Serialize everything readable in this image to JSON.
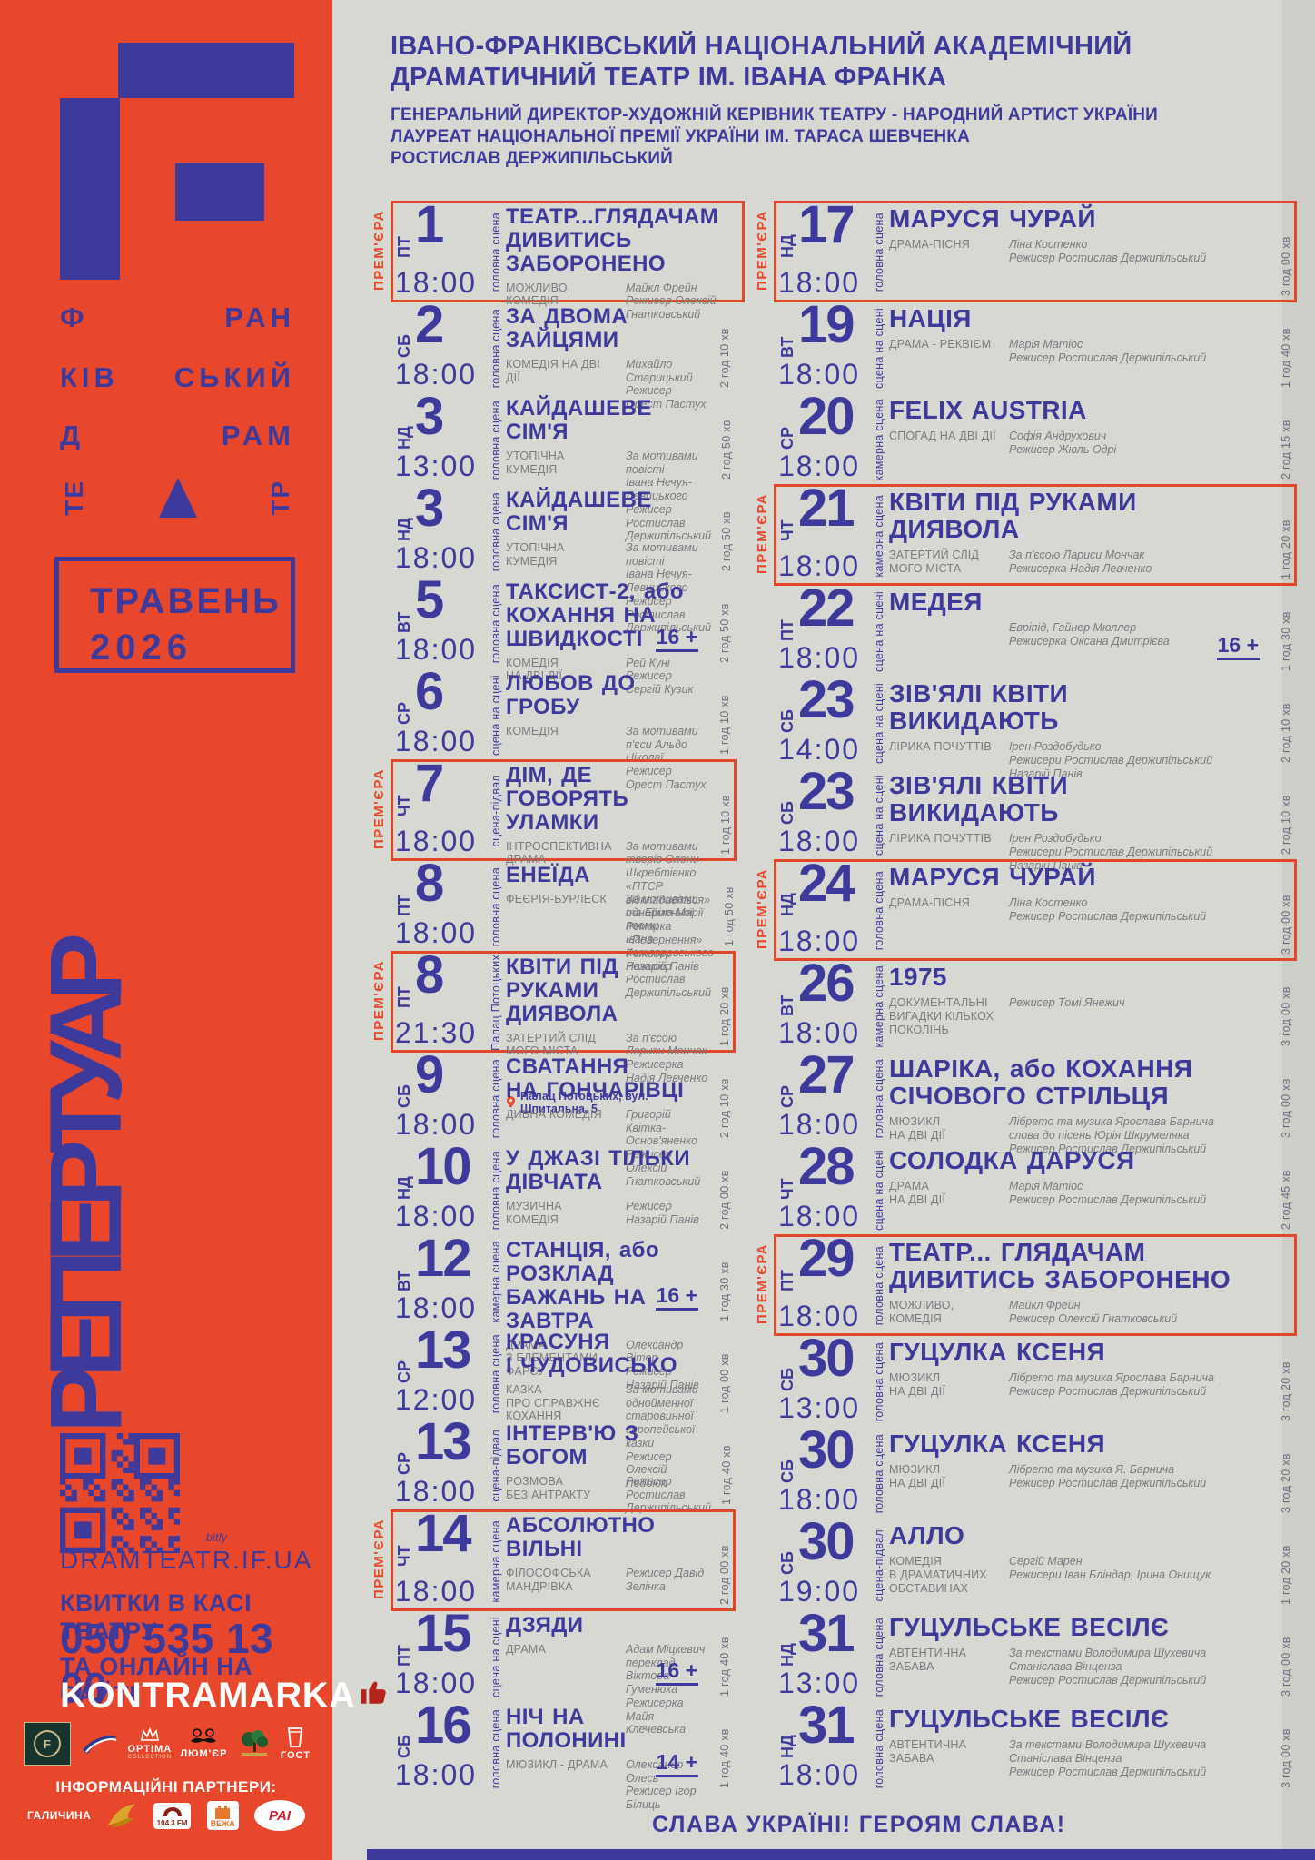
{
  "header": {
    "title1": "ІВАНО-ФРАНКІВСЬКИЙ НАЦІОНАЛЬНИЙ АКАДЕМІЧНИЙ",
    "title2": "ДРАМАТИЧНИЙ ТЕАТР ІМ. ІВАНА ФРАНКА",
    "sub1": "ГЕНЕРАЛЬНИЙ ДИРЕКТОР-ХУДОЖНІЙ КЕРІВНИК ТЕАТРУ - НАРОДНИЙ АРТИСТ УКРАЇНИ",
    "sub2": "ЛАУРЕАТ НАЦІОНАЛЬНОЇ ПРЕМІЇ УКРАЇНИ ІМ. ТАРАСА ШЕВЧЕНКА",
    "sub3": "РОСТИСЛАВ ДЕРЖИПІЛЬСЬКИЙ"
  },
  "sidebar": {
    "letters": {
      "r1a": "Ф",
      "r1b": "РАН",
      "r2a": "КІВ",
      "r2b": "СЬКИЙ",
      "r3a": "Д",
      "r3b": "РАМ",
      "r4a": "ТЕ",
      "r4b": "ТР"
    },
    "month": "ТРАВЕНЬ",
    "year": "2026",
    "vertical_title": "РЕПЕРТУАР",
    "qr_caption": "bitly",
    "site": "DRAMTEATR.IF.UA",
    "tickets1": "КВИТКИ В КАСІ ТЕАТРУ",
    "phone": "050 535 13 00",
    "tickets2": "ТА ОНЛАЙН НА САЙТІ",
    "kontramarka": "KONTRAMARKA",
    "partners_label": "ІНФОРМАЦІЙНІ ПАРТНЕРИ:",
    "partner_texts": {
      "hotel_f": "F",
      "optima": "OPTIMA",
      "optima_sub": "COLLECTION",
      "lumier": "ЛЮМ'ЄР",
      "gost": "ГОСТ"
    },
    "media_texts": {
      "halychyna": "ГАЛИЧИНА",
      "fm": "104.3 FM",
      "vezha": "ВЕЖА",
      "rai": "РАІ"
    }
  },
  "labels": {
    "premiere": "ПРЕМ'ЄРА"
  },
  "footer": {
    "slogan": "СЛАВА УКРАЇНІ!  ГЕРОЯМ СЛАВА!"
  },
  "colors": {
    "orange": "#E8472C",
    "blue": "#3E3A9C",
    "background": "#D8D8D2",
    "gray_text": "#7A7A80"
  },
  "columns": {
    "left": [
      {
        "premiere": true,
        "day": "ПТ",
        "date": "1",
        "time": "18:00",
        "stage": "головна сцена",
        "title": "ТЕАТР...ГЛЯДАЧАМ\nДИВИТИСЬ ЗАБОРОНЕНО",
        "genre": "МОЖЛИВО,\nКОМЕДІЯ",
        "credits": "Майкл Фрейн\nРежисер Олексій Гнатковський"
      },
      {
        "day": "СБ",
        "date": "2",
        "time": "18:00",
        "stage": "головна сцена",
        "title": "ЗА ДВОМА ЗАЙЦЯМИ",
        "genre": "КОМЕДІЯ НА ДВІ ДІЇ",
        "credits": "Михайло Старицький\nРежисер Орест Пастух",
        "duration": "2 год 10 хв"
      },
      {
        "day": "НД",
        "date": "3",
        "time": "13:00",
        "stage": "головна сцена",
        "title": "КАЙДАШЕВЕ СІМ'Я",
        "genre": "УТОПІЧНА КУМЕДІЯ",
        "credits": "За мотивами повісті\nІвана Нечуя-Левицького\nРежисер Ростислав Держипільський",
        "duration": "2 год 50 хв"
      },
      {
        "day": "НД",
        "date": "3",
        "time": "18:00",
        "stage": "головна сцена",
        "title": "КАЙДАШЕВЕ СІМ'Я",
        "genre": "УТОПІЧНА КУМЕДІЯ",
        "credits": "За мотивами повісті\nІвана Нечуя-Левицького\nРежисер Ростислав Держипільський",
        "duration": "2 год 50 хв"
      },
      {
        "day": "ВТ",
        "date": "5",
        "time": "18:00",
        "stage": "головна сцена",
        "title": "ТАКСИСТ-2, або\nКОХАННЯ НА ШВИДКОСТІ",
        "genre": "КОМЕДІЯ\nНА ДВІ ДІЇ",
        "credits": "Рей Куні\nРежисер Сергій Кузик",
        "age": "16 +",
        "duration": "2 год 50 хв"
      },
      {
        "day": "СР",
        "date": "6",
        "time": "18:00",
        "stage": "сцена на сцені",
        "title": "ЛЮБОВ ДО ГРОБУ",
        "genre": "КОМЕДІЯ",
        "credits": "За мотивами п'єси Альдо Ніколаї\nРежисер Орест Пастух",
        "duration": "1 год 10 хв"
      },
      {
        "premiere": true,
        "day": "ЧТ",
        "date": "7",
        "time": "18:00",
        "stage": "сцена-підвал",
        "title": "ДІМ, ДЕ ГОВОРЯТЬ\nУЛАМКИ",
        "genre": "ІНТРОСПЕКТИВНА\nДРАМА",
        "credits": "За мотивами творів Олени Шкребтієнко\n«ПТСР відкладається»\nта Еріха Марії Ремарка «Повернення»\nРежисер Назарій Панів",
        "duration": "1 год 10 хв"
      },
      {
        "day": "ПТ",
        "date": "8",
        "time": "18:00",
        "stage": "головна сцена",
        "title": "ЕНЕЇДА",
        "genre": "ФЕЄРІЯ-БУРЛЕСК",
        "credits": "За мотивами однойменної поеми\nІвана Котляревського\nРежисер Ростислав Держипільський",
        "duration": "1 год 50 хв"
      },
      {
        "premiere": true,
        "day": "ПТ",
        "date": "8",
        "time": "21:30",
        "stage": "Палац Потоцьких",
        "title": "КВІТИ ПІД РУКАМИ\nДИЯВОЛА",
        "genre": "ЗАТЕРТИЙ СЛІД\nМОГО МІСТА",
        "credits": "За п'єсою Лариси Мончак\nРежисерка Надія Левченко",
        "duration": "1 год 20 хв",
        "location": "Палац Потоцьких, вул. Шпитальна, 5"
      },
      {
        "day": "СБ",
        "date": "9",
        "time": "18:00",
        "stage": "головна сцена",
        "title": "СВАТАННЯ\nНА ГОНЧАРІВЦІ",
        "genre": "ДИВНА КОМЕДІЯ",
        "credits": "Григорій Квітка-Основ'яненко\nРежисер Олексій Гнатковський",
        "duration": "2 год 10 хв"
      },
      {
        "day": "НД",
        "date": "10",
        "time": "18:00",
        "stage": "головна сцена",
        "title": "У ДЖАЗІ ТІЛЬКИ\nДІВЧАТА",
        "genre": "МУЗИЧНА КОМЕДІЯ",
        "credits": "Режисер Назарій Панів",
        "duration": "2 год 00 хв"
      },
      {
        "day": "ВТ",
        "date": "12",
        "time": "18:00",
        "stage": "камерна сцена",
        "title": "СТАНЦІЯ, або РОЗКЛАД\nБАЖАНЬ НА ЗАВТРА",
        "genre": "ДРАМА\nЗ ЕЛЕМЕНТАМИ ФАРСУ",
        "credits": "Олександр Вітер\nРежисер Назарій Панів",
        "age": "16 +",
        "duration": "1 год 30 хв"
      },
      {
        "day": "СР",
        "date": "13",
        "time": "12:00",
        "stage": "головна сцена",
        "title": "КРАСУНЯ\nІ ЧУДОВИСЬКО",
        "genre": "КАЗКА\nПРО СПРАВЖНЄ\nКОХАННЯ",
        "credits": "За мотивами однойменної\nстаровинної європейської казки\nРежисер Олексій Лейбюк",
        "duration": "1 год 00 хв"
      },
      {
        "day": "СР",
        "date": "13",
        "time": "18:00",
        "stage": "сцена-підвал",
        "title": "ІНТЕРВ'Ю З БОГОМ",
        "genre": "РОЗМОВА\nБЕЗ АНТРАКТУ",
        "credits": "Режисер Ростислав Держипільський",
        "duration": "1 год 40 хв"
      },
      {
        "premiere": true,
        "day": "ЧТ",
        "date": "14",
        "time": "18:00",
        "stage": "камерна сцена",
        "title": "АБСОЛЮТНО ВІЛЬНІ",
        "genre": "ФІЛОСОФСЬКА\nМАНДРІВКА",
        "credits": "Режисер Давід Зелінка",
        "duration": "2 год 00 хв"
      },
      {
        "day": "ПТ",
        "date": "15",
        "time": "18:00",
        "stage": "сцена на сцені",
        "title": "ДЗЯДИ",
        "genre": "ДРАМА",
        "credits": "Адам Міцкевич\nпереклад Віктора Гуменюка\nРежисерка Майя Клечевська",
        "age": "16 +",
        "duration": "1 год 40 хв"
      },
      {
        "day": "СБ",
        "date": "16",
        "time": "18:00",
        "stage": "головна сцена",
        "title": "НІЧ НА ПОЛОНИНІ",
        "genre": "МЮЗИКЛ - ДРАМА",
        "credits": "Олександр Олесь\nРежисер Ігор Білиць",
        "age": "14 +",
        "duration": "1 год 40 хв"
      }
    ],
    "right": [
      {
        "premiere": true,
        "day": "НД",
        "date": "17",
        "time": "18:00",
        "stage": "головна сцена",
        "title": "МАРУСЯ ЧУРАЙ",
        "genre": "ДРАМА-ПІСНЯ",
        "credits": "Ліна Костенко\nРежисер Ростислав Держипільський",
        "duration": "3 год 00 хв"
      },
      {
        "day": "ВТ",
        "date": "19",
        "time": "18:00",
        "stage": "сцена на сцені",
        "title": "НАЦІЯ",
        "genre": "ДРАМА - РЕКВІЄМ",
        "credits": "Марія Матіос\nРежисер Ростислав Держипільський",
        "duration": "1 год 40 хв"
      },
      {
        "day": "СР",
        "date": "20",
        "time": "18:00",
        "stage": "камерна сцена",
        "title": "FELIX AUSTRIA",
        "genre": "СПОГАД НА ДВІ ДІЇ",
        "credits": "Софія Андрухович\nРежисер Жюль Одрі",
        "duration": "2 год 15 хв"
      },
      {
        "premiere": true,
        "day": "ЧТ",
        "date": "21",
        "time": "18:00",
        "stage": "камерна сцена",
        "title": "КВІТИ ПІД РУКАМИ\nДИЯВОЛА",
        "genre": "ЗАТЕРТИЙ СЛІД\nМОГО МІСТА",
        "credits": "За п'єсою Лариси Мончак\nРежисерка Надія Левченко",
        "duration": "1 год 20 хв"
      },
      {
        "day": "ПТ",
        "date": "22",
        "time": "18:00",
        "stage": "сцена на сцені",
        "title": "МЕДЕЯ",
        "genre": "",
        "credits": "Евріпід, Гайнер Мюллер\nРежисерка Оксана Дмитрієва",
        "age": "16 +",
        "duration": "1 год 30 хв"
      },
      {
        "day": "СБ",
        "date": "23",
        "time": "14:00",
        "stage": "сцена на сцені",
        "title": "ЗІВ'ЯЛІ КВІТИ\nВИКИДАЮТЬ",
        "genre": "ЛІРИКА ПОЧУТТІВ",
        "credits": "Ірен Роздобудько\nРежисери Ростислав Держипільський\nНазарій Панів",
        "duration": "2 год 10 хв"
      },
      {
        "day": "СБ",
        "date": "23",
        "time": "18:00",
        "stage": "сцена на сцені",
        "title": "ЗІВ'ЯЛІ КВІТИ\nВИКИДАЮТЬ",
        "genre": "ЛІРИКА ПОЧУТТІВ",
        "credits": "Ірен Роздобудько\nРежисери Ростислав Держипільський\nНазарій Панів",
        "duration": "2 год 10 хв"
      },
      {
        "premiere": true,
        "day": "НД",
        "date": "24",
        "time": "18:00",
        "stage": "головна сцена",
        "title": "МАРУСЯ ЧУРАЙ",
        "genre": "ДРАМА-ПІСНЯ",
        "credits": "Ліна Костенко\nРежисер Ростислав Держипільський",
        "duration": "3 год 00 хв"
      },
      {
        "day": "ВТ",
        "date": "26",
        "time": "18:00",
        "stage": "камерна сцена",
        "title": "1975",
        "genre": "ДОКУМЕНТАЛЬНІ\nВИГАДКИ КІЛЬКОХ\nПОКОЛІНЬ",
        "credits": "Режисер Томі Янежич",
        "duration": "3 год 00 хв"
      },
      {
        "day": "СР",
        "date": "27",
        "time": "18:00",
        "stage": "головна сцена",
        "title": "ШАРІКА, або КОХАННЯ\nСІЧОВОГО СТРІЛЬЦЯ",
        "genre": "МЮЗИКЛ\nНА ДВІ ДІЇ",
        "credits": "Лібрето та музика Ярослава Барнича\nслова до пісень Юрія Шкрумеляка\nРежисер Ростислав Держипільський",
        "duration": "3 год 00 хв"
      },
      {
        "day": "ЧТ",
        "date": "28",
        "time": "18:00",
        "stage": "сцена на сцені",
        "title": "СОЛОДКА ДАРУСЯ",
        "genre": "ДРАМА\nНА ДВІ ДІЇ",
        "credits": "Марія Матіос\nРежисер Ростислав Держипільський",
        "duration": "2 год 45 хв"
      },
      {
        "premiere": true,
        "day": "ПТ",
        "date": "29",
        "time": "18:00",
        "stage": "головна сцена",
        "title": "ТЕАТР... ГЛЯДАЧАМ\nДИВИТИСЬ ЗАБОРОНЕНО",
        "genre": "МОЖЛИВО,\nКОМЕДІЯ",
        "credits": "Майкл Фрейн\nРежисер Олексій Гнатковський"
      },
      {
        "day": "СБ",
        "date": "30",
        "time": "13:00",
        "stage": "головна сцена",
        "title": "ГУЦУЛКА КСЕНЯ",
        "genre": "МЮЗИКЛ\nНА ДВІ ДІЇ",
        "credits": "Лібрето та музика Ярослава Барнича\nРежисер Ростислав Держипільський",
        "duration": "3 год 20 хв"
      },
      {
        "day": "СБ",
        "date": "30",
        "time": "18:00",
        "stage": "головна сцена",
        "title": "ГУЦУЛКА КСЕНЯ",
        "genre": "МЮЗИКЛ\nНА ДВІ ДІЇ",
        "credits": "Лібрето та музика Я. Барнича\nРежисер Ростислав Держипільський",
        "duration": "3 год 20 хв"
      },
      {
        "day": "СБ",
        "date": "30",
        "time": "19:00",
        "stage": "сцена-підвал",
        "title": "АЛЛО",
        "genre": "КОМЕДІЯ\nВ ДРАМАТИЧНИХ\nОБСТАВИНАХ",
        "credits": "Сергій Марен\nРежисери Іван Бліндар, Ірина Онищук",
        "duration": "1 год 20 хв"
      },
      {
        "day": "НД",
        "date": "31",
        "time": "13:00",
        "stage": "головна сцена",
        "title": "ГУЦУЛЬСЬКЕ ВЕСІЛЄ",
        "genre": "АВТЕНТИЧНА\nЗАБАВА",
        "credits": "За текстами Володимира Шухевича\nСтаніслава Вінценза\nРежисер Ростислав Держипільський",
        "duration": "3 год 00 хв"
      },
      {
        "day": "НД",
        "date": "31",
        "time": "18:00",
        "stage": "головна сцена",
        "title": "ГУЦУЛЬСЬКЕ ВЕСІЛЄ",
        "genre": "АВТЕНТИЧНА\nЗАБАВА",
        "credits": "За текстами Володимира Шухевича\nСтаніслава Вінценза\nРежисер Ростислав Держипільський",
        "duration": "3 год 00 хв"
      }
    ]
  }
}
